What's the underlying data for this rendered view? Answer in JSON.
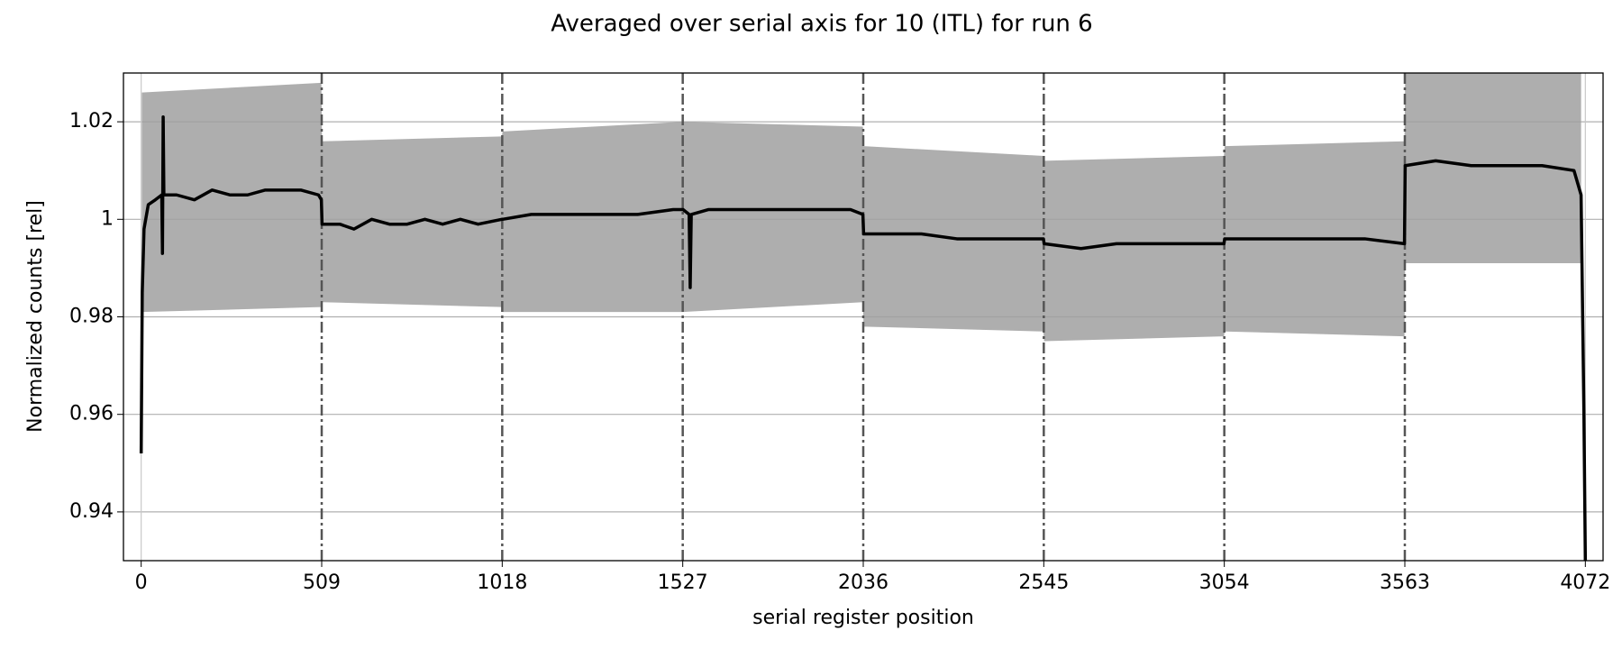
{
  "chart_data": {
    "type": "line",
    "title": "Averaged over serial axis for 10 (ITL) for run 6",
    "xlabel": "serial register position",
    "ylabel": "Normalized counts [rel]",
    "xlim": [
      -50,
      4122
    ],
    "ylim": [
      0.93,
      1.03
    ],
    "xticks": [
      0,
      509,
      1018,
      1527,
      2036,
      2545,
      3054,
      3563,
      4072
    ],
    "yticks": [
      0.94,
      0.96,
      0.98,
      1.0,
      1.02
    ],
    "grid": true,
    "band": {
      "color": "#a0a0a0",
      "x": [
        2,
        508,
        510,
        1017,
        1019,
        1526,
        1528,
        2035,
        2037,
        2544,
        2546,
        3053,
        3055,
        3562,
        3564,
        4060
      ],
      "upper": [
        1.026,
        1.028,
        1.016,
        1.017,
        1.018,
        1.02,
        1.02,
        1.019,
        1.015,
        1.013,
        1.012,
        1.013,
        1.015,
        1.016,
        1.03,
        1.03
      ],
      "lower": [
        0.981,
        0.982,
        0.983,
        0.982,
        0.981,
        0.981,
        0.981,
        0.983,
        0.978,
        0.977,
        0.975,
        0.976,
        0.977,
        0.976,
        0.991,
        0.991
      ]
    },
    "series": [
      {
        "color": "#000000",
        "x": [
          0,
          3,
          8,
          20,
          40,
          58,
          60,
          62,
          64,
          100,
          150,
          200,
          250,
          300,
          350,
          400,
          450,
          500,
          508,
          510,
          560,
          600,
          650,
          700,
          750,
          800,
          850,
          900,
          950,
          1017,
          1019,
          1100,
          1200,
          1300,
          1400,
          1500,
          1526,
          1528,
          1545,
          1548,
          1551,
          1600,
          1700,
          1800,
          1900,
          2000,
          2035,
          2037,
          2100,
          2200,
          2300,
          2400,
          2544,
          2546,
          2650,
          2750,
          2850,
          2950,
          3053,
          3055,
          3150,
          3250,
          3350,
          3450,
          3562,
          3564,
          3650,
          3750,
          3850,
          3950,
          4040,
          4060,
          4068,
          4072
        ],
        "values": [
          0.952,
          0.985,
          0.998,
          1.003,
          1.004,
          1.005,
          0.993,
          1.021,
          1.005,
          1.005,
          1.004,
          1.006,
          1.005,
          1.005,
          1.006,
          1.006,
          1.006,
          1.005,
          1.004,
          0.999,
          0.999,
          0.998,
          1.0,
          0.999,
          0.999,
          1.0,
          0.999,
          1.0,
          0.999,
          1.0,
          1.0,
          1.001,
          1.001,
          1.001,
          1.001,
          1.002,
          1.002,
          1.002,
          1.001,
          0.986,
          1.001,
          1.002,
          1.002,
          1.002,
          1.002,
          1.002,
          1.001,
          0.997,
          0.997,
          0.997,
          0.996,
          0.996,
          0.996,
          0.995,
          0.994,
          0.995,
          0.995,
          0.995,
          0.995,
          0.996,
          0.996,
          0.996,
          0.996,
          0.996,
          0.995,
          1.011,
          1.012,
          1.011,
          1.011,
          1.011,
          1.01,
          1.005,
          0.96,
          0.93
        ]
      }
    ]
  }
}
